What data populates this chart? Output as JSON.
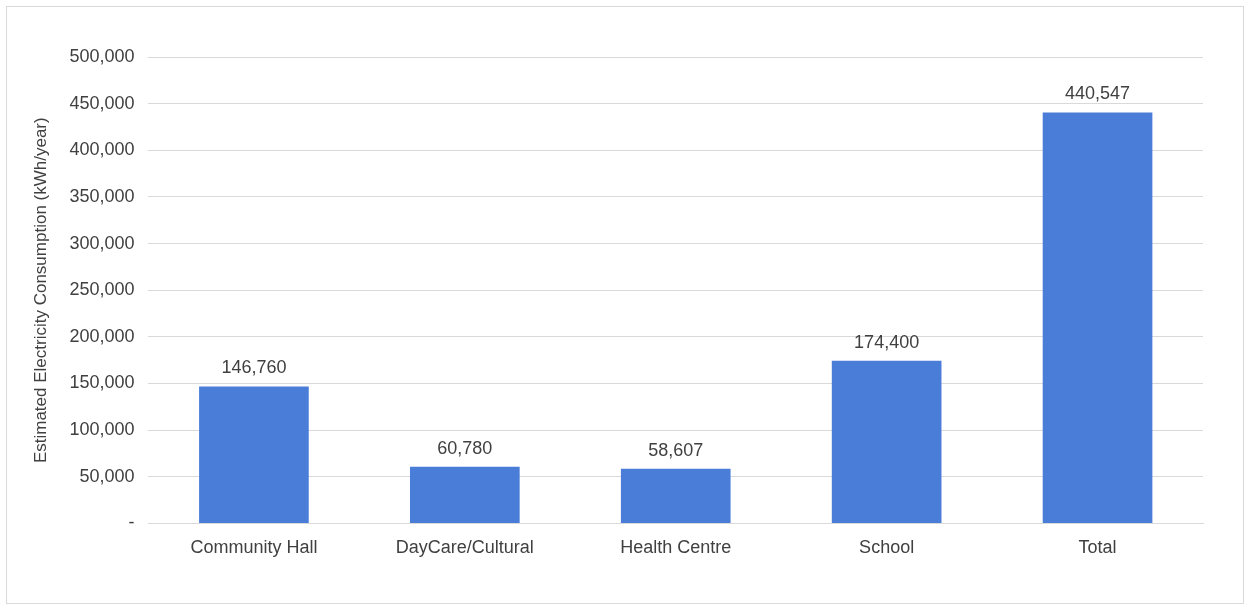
{
  "chart_data": {
    "type": "bar",
    "ylabel": "Estimated Electricity Consumption (kWh/year)",
    "categories": [
      "Community Hall",
      "DayCare/Cultural",
      "Health Centre",
      "School",
      "Total"
    ],
    "values": [
      146760,
      60780,
      58607,
      174400,
      440547
    ],
    "value_labels": [
      "146,760",
      "60,780",
      "58,607",
      "174,400",
      "440,547"
    ],
    "color": "#4a7dd8",
    "ylim": [
      0,
      500000
    ],
    "yticks": [
      {
        "value": 0,
        "label": "-"
      },
      {
        "value": 50000,
        "label": "50,000"
      },
      {
        "value": 100000,
        "label": "100,000"
      },
      {
        "value": 150000,
        "label": "150,000"
      },
      {
        "value": 200000,
        "label": "200,000"
      },
      {
        "value": 250000,
        "label": "250,000"
      },
      {
        "value": 300000,
        "label": "300,000"
      },
      {
        "value": 350000,
        "label": "350,000"
      },
      {
        "value": 400000,
        "label": "400,000"
      },
      {
        "value": 450000,
        "label": "450,000"
      },
      {
        "value": 500000,
        "label": "500,000"
      }
    ],
    "grid": "y",
    "legend": false
  }
}
